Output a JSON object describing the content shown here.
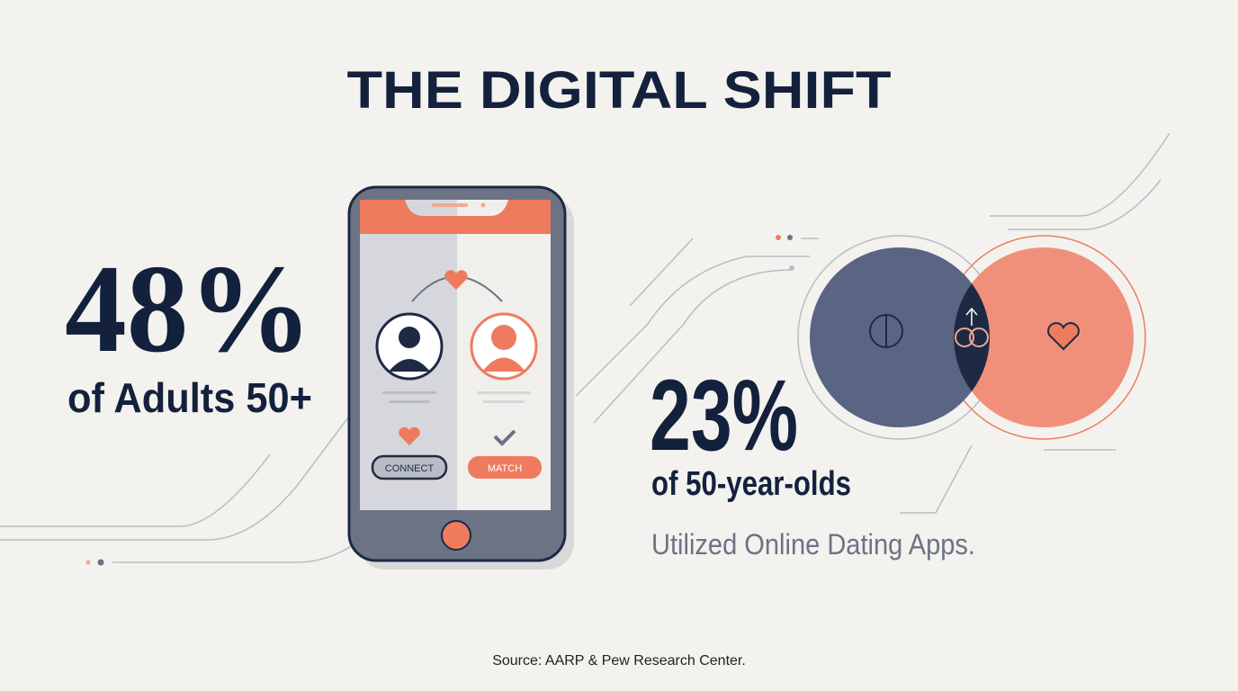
{
  "header": {
    "title": "THE DIGITAL SHIFT"
  },
  "stat_primary": {
    "value": "48%",
    "label": "of Adults 50+"
  },
  "phone": {
    "connect_button": "CONNECT",
    "match_button": "MATCH"
  },
  "stat_secondary": {
    "value": "23%",
    "label": "of 50-year-olds",
    "caption": "Utilized Online Dating Apps."
  },
  "footer": {
    "source": "Source: AARP & Pew Research Center."
  }
}
